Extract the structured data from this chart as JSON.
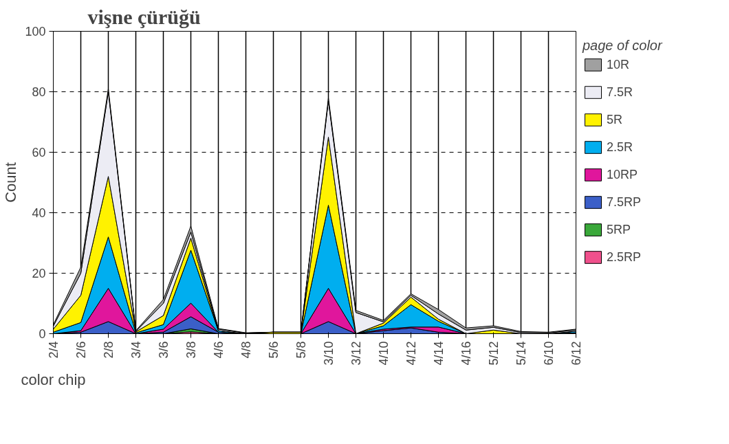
{
  "chart_data": {
    "type": "area",
    "title": "vişne çürüğü",
    "xlabel": "color chip",
    "ylabel": "Count",
    "legend_title": "page of color",
    "categories": [
      "2/4",
      "2/6",
      "2/8",
      "3/4",
      "3/6",
      "3/8",
      "4/6",
      "4/8",
      "5/6",
      "5/8",
      "3/10",
      "3/12",
      "4/10",
      "4/12",
      "4/14",
      "4/16",
      "5/12",
      "5/14",
      "6/10",
      "6/12"
    ],
    "stacked": true,
    "ylim": [
      0,
      100
    ],
    "yticks": [
      0,
      20,
      40,
      60,
      80,
      100
    ],
    "grid": true,
    "legend": "right",
    "series": [
      {
        "name": "2.5RP",
        "color": "#f0508c",
        "values": [
          0,
          0,
          0,
          0,
          0,
          0.6,
          0,
          0,
          0,
          0,
          0,
          0,
          0,
          0,
          0,
          0,
          0,
          0,
          0,
          0
        ]
      },
      {
        "name": "5RP",
        "color": "#3aa83a",
        "values": [
          0,
          0,
          0,
          0,
          0,
          1,
          0,
          0,
          0,
          0,
          0,
          0,
          0,
          0,
          0,
          0,
          0,
          0,
          0,
          0
        ]
      },
      {
        "name": "7.5RP",
        "color": "#3b5fc8",
        "values": [
          0,
          0.5,
          4,
          0,
          0.5,
          4,
          0.5,
          0,
          0,
          0,
          4,
          0,
          1,
          1.9,
          0.5,
          0,
          0,
          0,
          0,
          0.3
        ]
      },
      {
        "name": "10RP",
        "color": "#e0169c",
        "values": [
          0,
          0.5,
          11,
          0,
          1,
          4.5,
          0,
          0,
          0,
          0,
          11,
          0,
          0.5,
          0.3,
          1.7,
          0,
          0,
          0,
          0,
          0
        ]
      },
      {
        "name": "2.5R",
        "color": "#00aeef",
        "values": [
          0.5,
          2.7,
          17,
          0.3,
          1.5,
          17.5,
          0.5,
          0,
          0,
          0,
          27.5,
          0,
          1.1,
          7.4,
          1.9,
          0,
          0,
          0,
          0,
          0.5
        ]
      },
      {
        "name": "5R",
        "color": "#fff200",
        "values": [
          1,
          9,
          20,
          0.3,
          3,
          4,
          0,
          0,
          0.5,
          0.5,
          22.5,
          0,
          0.9,
          2.5,
          0.7,
          0,
          1.2,
          0,
          0,
          0
        ]
      },
      {
        "name": "7.5R",
        "color": "#ececf4",
        "values": [
          1,
          7.3,
          28,
          0.2,
          4,
          2,
          0.5,
          0.2,
          0,
          0,
          12,
          7,
          0.4,
          0.6,
          1.7,
          1.2,
          0.9,
          0.4,
          0.3,
          0.4
        ]
      },
      {
        "name": "10R",
        "color": "#a0a0a0",
        "values": [
          0.5,
          2,
          1,
          0.2,
          1.3,
          2,
          0.2,
          0.1,
          0,
          0,
          1,
          0.7,
          0.5,
          0.5,
          1.5,
          0.7,
          0.5,
          0.3,
          0.2,
          0.3
        ]
      }
    ]
  }
}
